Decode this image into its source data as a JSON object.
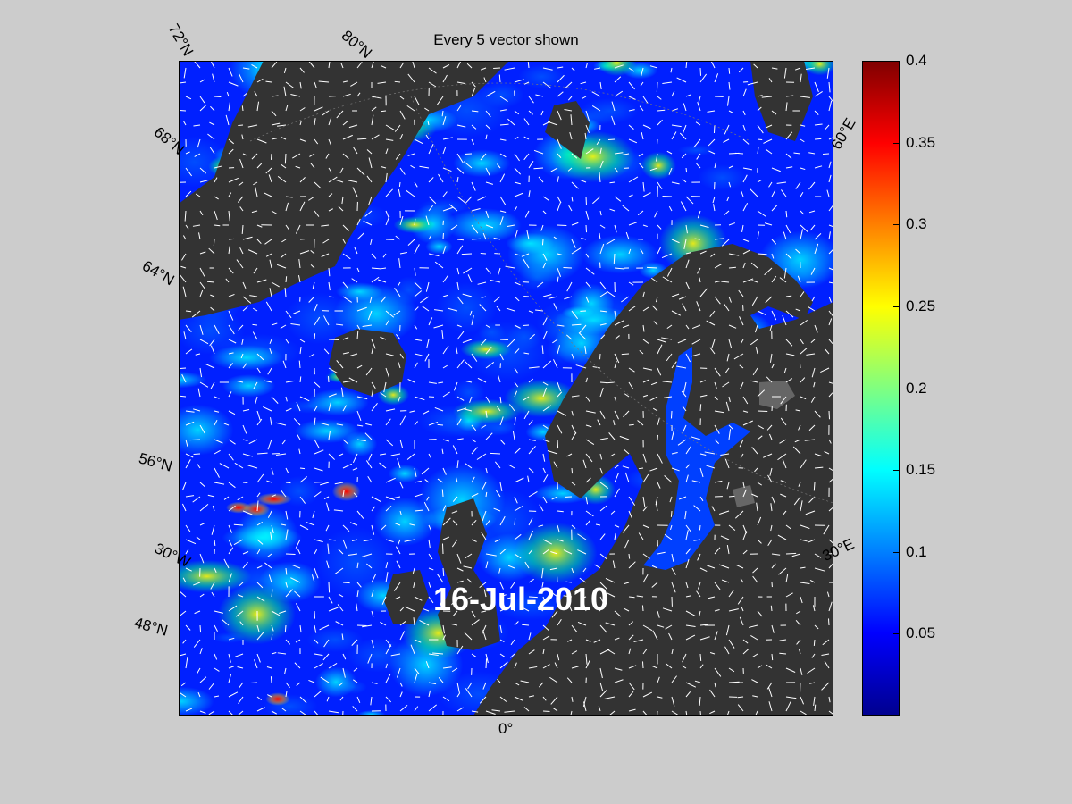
{
  "title": "Every 5 vector shown",
  "date": "16-Jul-2010",
  "lat_labels": [
    "72°N",
    "68°N",
    "64°N",
    "56°N",
    "48°N"
  ],
  "lon_labels": [
    "80°N",
    "60°E",
    "30°E",
    "0°",
    "30°W"
  ],
  "colorbar": {
    "min": 0,
    "max": 0.4,
    "ticks": [
      "0.4",
      "0.35",
      "0.3",
      "0.25",
      "0.2",
      "0.15",
      "0.1",
      "0.05"
    ],
    "colormap": "jet"
  },
  "colors": {
    "background": "#cccccc",
    "land": "#333333",
    "ocean_low": "#0020ff",
    "vectors": "#ffffff"
  }
}
